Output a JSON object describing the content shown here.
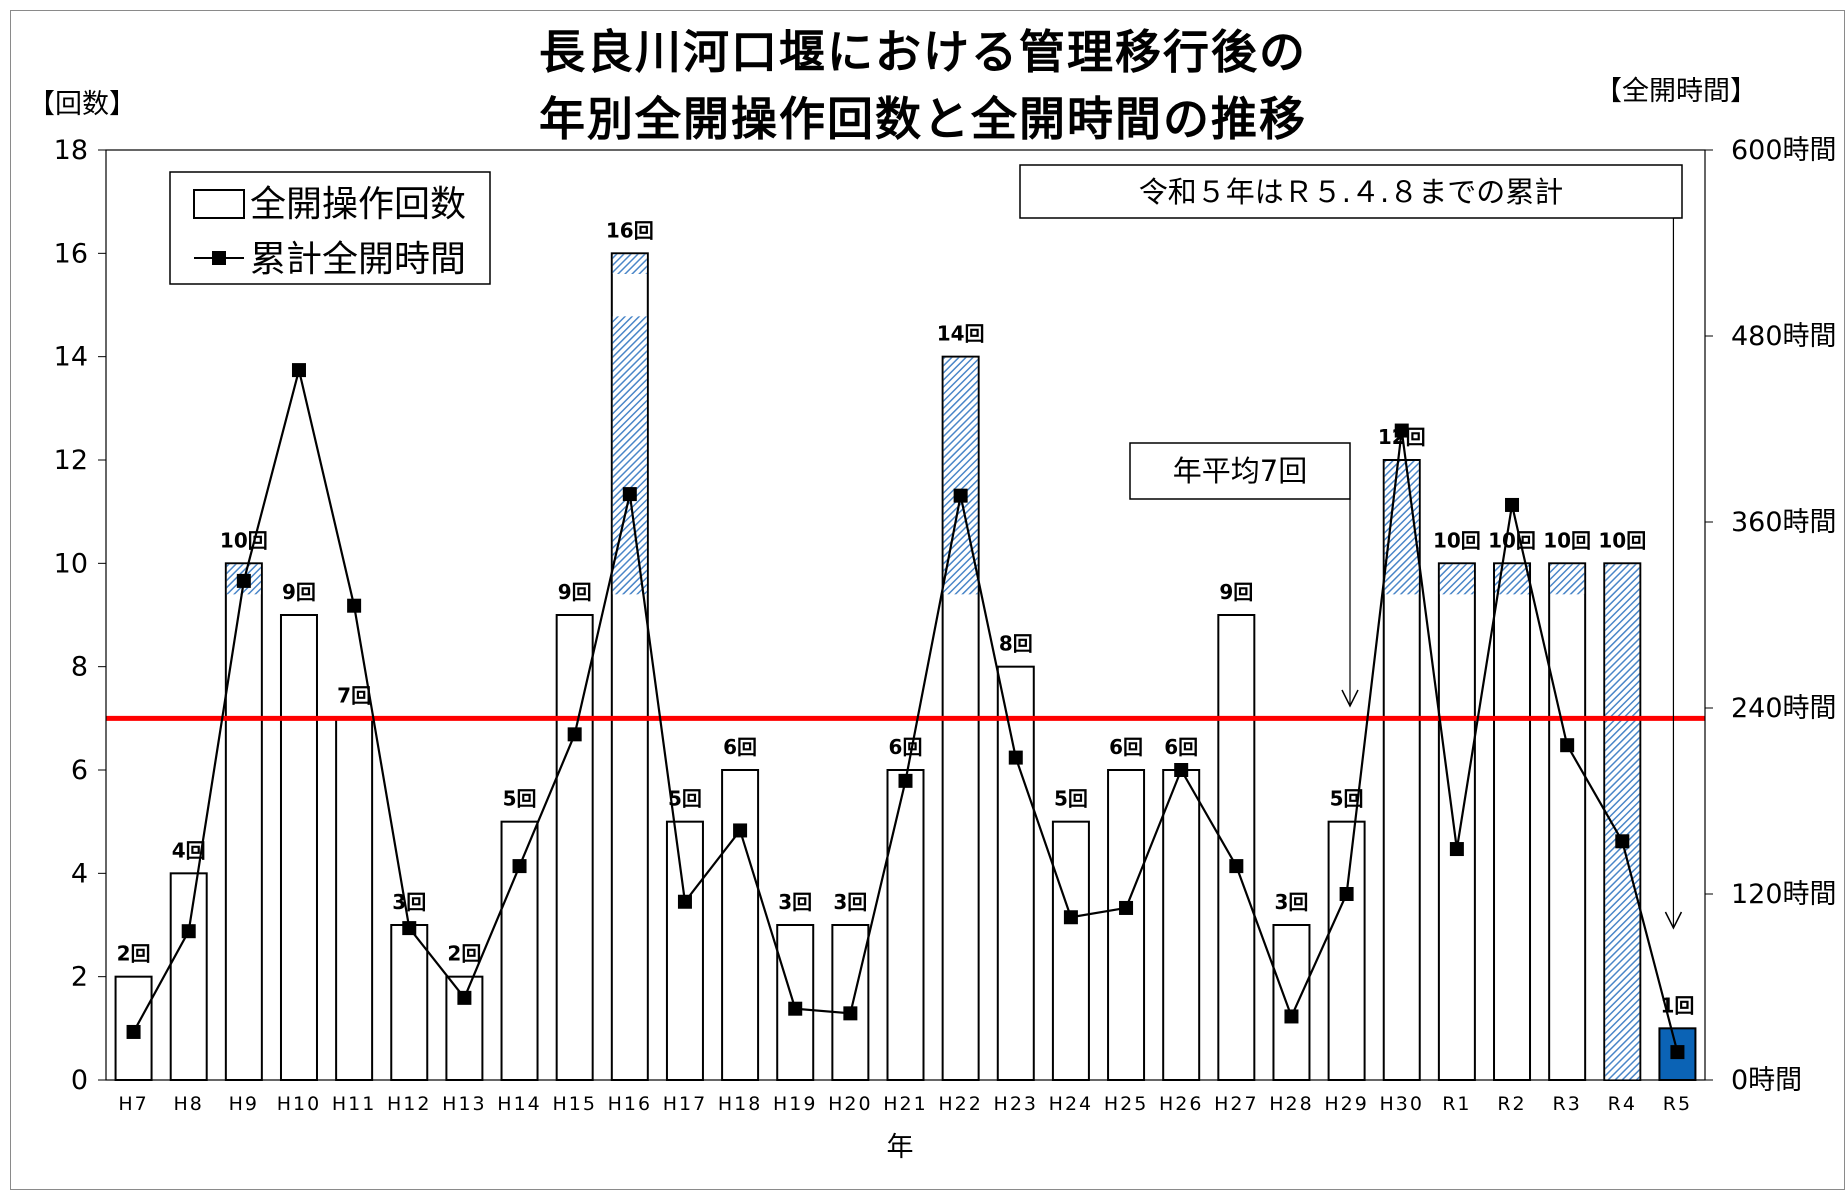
{
  "chart_data": {
    "type": "bar",
    "title_lines": [
      "長良川河口堰における管理移行後の",
      "年別全開操作回数と全開時間の推移"
    ],
    "xlabel": "年",
    "ylabel_left": "【回数】",
    "ylabel_right": "【全開時間】",
    "ylim_left": [
      0,
      18
    ],
    "yticks_left": [
      "0",
      "2",
      "4",
      "6",
      "8",
      "10",
      "12",
      "14",
      "16",
      "18"
    ],
    "ylim_right": [
      0,
      600
    ],
    "yticks_right": [
      "0時間",
      "120時間",
      "240時間",
      "360時間",
      "480時間",
      "600時間"
    ],
    "categories": [
      "H7",
      "H8",
      "H9",
      "H10",
      "H11",
      "H12",
      "H13",
      "H14",
      "H15",
      "H16",
      "H17",
      "H18",
      "H19",
      "H20",
      "H21",
      "H22",
      "H23",
      "H24",
      "H25",
      "H26",
      "H27",
      "H28",
      "H29",
      "H30",
      "R1",
      "R2",
      "R3",
      "R4",
      "R5"
    ],
    "series": [
      {
        "name": "全開操作回数",
        "type": "bar",
        "axis": "left",
        "values": [
          2,
          4,
          10,
          9,
          7,
          3,
          2,
          5,
          9,
          16,
          5,
          6,
          3,
          3,
          6,
          14,
          8,
          5,
          6,
          6,
          9,
          3,
          5,
          12,
          10,
          10,
          10,
          10,
          1
        ],
        "labels": [
          "2回",
          "4回",
          "10回",
          "9回",
          "7回",
          "3回",
          "2回",
          "5回",
          "9回",
          "16回",
          "5回",
          "6回",
          "3回",
          "3回",
          "6回",
          "14回",
          "8回",
          "5回",
          "6回",
          "6回",
          "9回",
          "3回",
          "5回",
          "12回",
          "10回",
          "10回",
          "10回",
          "10回",
          "1回"
        ]
      },
      {
        "name": "累計全開時間",
        "type": "line",
        "axis": "right",
        "values": [
          31,
          96,
          322,
          458,
          306,
          98,
          53,
          138,
          223,
          378,
          115,
          161,
          46,
          43,
          193,
          377,
          208,
          105,
          111,
          200,
          138,
          41,
          120,
          419,
          149,
          371,
          216,
          154,
          18
        ]
      }
    ],
    "hatched_ranges": [
      {
        "category": "H9",
        "from": 9.4,
        "to": 10
      },
      {
        "category": "H16",
        "from": 9.4,
        "to": 14.8
      },
      {
        "category": "H16",
        "from": 15.6,
        "to": 16
      },
      {
        "category": "H22",
        "from": 9.4,
        "to": 14
      },
      {
        "category": "H30",
        "from": 9.4,
        "to": 12
      },
      {
        "category": "R1",
        "from": 9.4,
        "to": 10
      },
      {
        "category": "R2",
        "from": 9.4,
        "to": 10
      },
      {
        "category": "R3",
        "from": 9.4,
        "to": 10
      },
      {
        "category": "R4",
        "from": 0,
        "to": 10
      }
    ],
    "highlight_bar": {
      "category": "R5",
      "color": "#0b63b5"
    },
    "average_line": {
      "value": 7,
      "label": "年平均7回",
      "color": "#ff0000"
    },
    "note": "令和５年はＲ５.４.８までの累計",
    "legend": {
      "position": "top-left"
    },
    "colors": {
      "bar_fill": "#ffffff",
      "bar_stroke": "#000000",
      "hatch": "#4a86c8",
      "line": "#000000"
    }
  }
}
